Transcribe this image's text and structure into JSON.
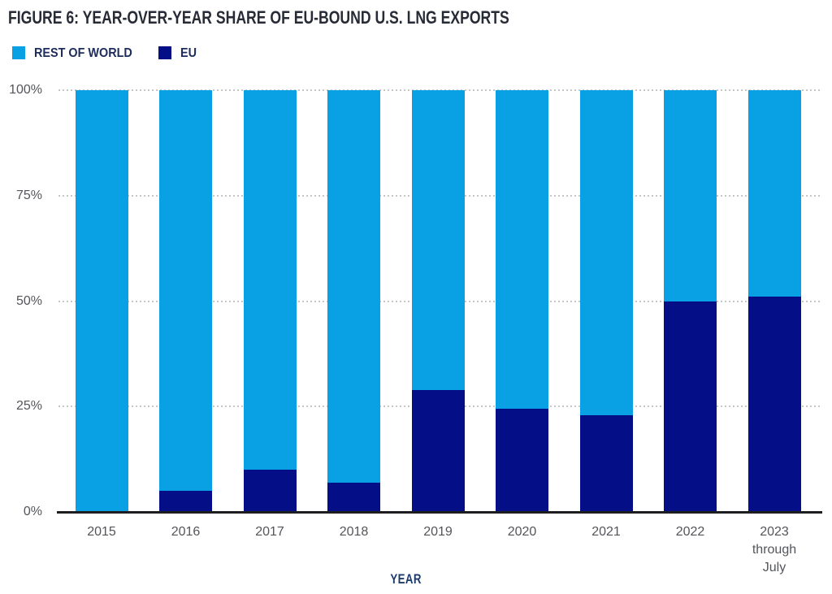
{
  "title": "FIGURE 6: YEAR-OVER-YEAR SHARE OF EU-BOUND U.S. LNG EXPORTS",
  "legend": [
    {
      "label": "REST OF WORLD",
      "color": "#09a1e3"
    },
    {
      "label": "EU",
      "color": "#040e86"
    }
  ],
  "chart_data": {
    "type": "bar",
    "stacked": true,
    "title": "FIGURE 6: YEAR-OVER-YEAR SHARE OF EU-BOUND U.S. LNG EXPORTS",
    "xlabel": "YEAR",
    "ylabel": "",
    "categories": [
      "2015",
      "2016",
      "2017",
      "2018",
      "2019",
      "2020",
      "2021",
      "2022",
      "2023 through July"
    ],
    "categories_lines": [
      [
        "2015"
      ],
      [
        "2016"
      ],
      [
        "2017"
      ],
      [
        "2018"
      ],
      [
        "2019"
      ],
      [
        "2020"
      ],
      [
        "2021"
      ],
      [
        "2022"
      ],
      [
        "2023",
        "through",
        "July"
      ]
    ],
    "series": [
      {
        "name": "EU",
        "color": "#040e86",
        "values": [
          0,
          5,
          10,
          7,
          29,
          24.5,
          23,
          50,
          51
        ]
      },
      {
        "name": "REST OF WORLD",
        "color": "#09a1e3",
        "values": [
          100,
          95,
          90,
          93,
          71,
          75.5,
          77,
          50,
          49
        ]
      }
    ],
    "ylim": [
      0,
      100
    ],
    "y_ticks": [
      {
        "label": "0%",
        "value": 0
      },
      {
        "label": "25%",
        "value": 25
      },
      {
        "label": "50%",
        "value": 50
      },
      {
        "label": "75%",
        "value": 75
      },
      {
        "label": "100%",
        "value": 100
      }
    ],
    "grid": "horizontal dotted",
    "legend_position": "top-left",
    "colors": {
      "grid": "#c7c7c7",
      "axis_line": "#1e1e20",
      "tick_text": "#54555a"
    }
  }
}
